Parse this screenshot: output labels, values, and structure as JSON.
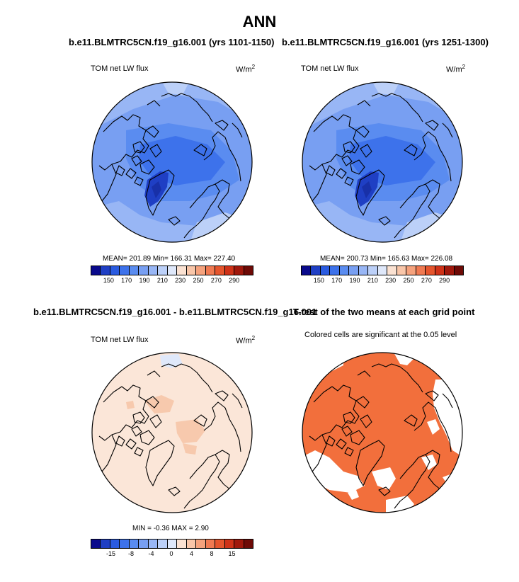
{
  "title": "ANN",
  "panels": {
    "p1": {
      "title": "b.e11.BLMTRC5CN.f19_g16.001 (yrs 1101-1150)",
      "left_label": "TOM net LW flux",
      "unit": "W/m",
      "unit_exp": "2",
      "stats": "MEAN= 201.89  Min= 166.31  Max= 227.40"
    },
    "p2": {
      "title": "b.e11.BLMTRC5CN.f19_g16.001 (yrs 1251-1300)",
      "left_label": "TOM net LW flux",
      "unit": "W/m",
      "unit_exp": "2",
      "stats": "MEAN= 200.73  Min= 165.63  Max= 226.08"
    },
    "p3": {
      "title": "b.e11.BLMTRC5CN.f19_g16.001 - b.e11.BLMTRC5CN.f19_g16.001",
      "left_label": "TOM net LW flux",
      "unit": "W/m",
      "unit_exp": "2",
      "stats": "MIN =  -0.36 MAX =   2.90"
    },
    "p4": {
      "title": "T-test of the two means at each grid point",
      "subtitle": "Colored cells are significant at the 0.05 level"
    }
  },
  "colorbars": {
    "abs": {
      "colors": [
        "#0a0a8c",
        "#1f3fc4",
        "#2a5be0",
        "#3d72eb",
        "#5a8cf0",
        "#789ff2",
        "#98b6f5",
        "#bcd0f8",
        "#dfe8fa",
        "#fbe2d2",
        "#f9c6a9",
        "#f5a27d",
        "#f07a52",
        "#e5552d",
        "#cf3218",
        "#a0180c",
        "#6e0a06"
      ],
      "ticks": [
        "150",
        "170",
        "190",
        "210",
        "230",
        "250",
        "270",
        "290"
      ]
    },
    "diff": {
      "colors": [
        "#0a0a8c",
        "#1f3fc4",
        "#2a5be0",
        "#3d72eb",
        "#5a8cf0",
        "#789ff2",
        "#98b6f5",
        "#bcd0f8",
        "#dfe8fa",
        "#fbe2d2",
        "#f9c6a9",
        "#f5a27d",
        "#f07a52",
        "#e5552d",
        "#cf3218",
        "#a0180c",
        "#6e0a06"
      ],
      "ticks": [
        "-15",
        "-8",
        "-4",
        "0",
        "4",
        "8",
        "15"
      ]
    }
  },
  "map_colors": {
    "ocean_abs": "#789ff2",
    "mid_abs": "#5a8cf0",
    "dark_abs": "#3d72eb",
    "deep_abs": "#1f3fc4",
    "light_abs": "#98b6f5",
    "pale_abs": "#bcd0f8",
    "warm_edge": "#fbe2d2",
    "diff_base": "#fbe6d8",
    "diff_patch": "#f7c9ad",
    "diff_blue": "#dfe8fa",
    "sig": "#f26f3c"
  }
}
